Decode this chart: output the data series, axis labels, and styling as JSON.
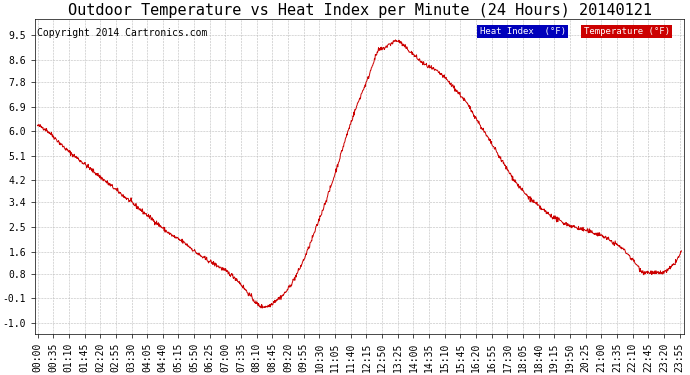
{
  "title": "Outdoor Temperature vs Heat Index per Minute (24 Hours) 20140121",
  "copyright": "Copyright 2014 Cartronics.com",
  "yticks": [
    9.5,
    8.6,
    7.8,
    6.9,
    6.0,
    5.1,
    4.2,
    3.4,
    2.5,
    1.6,
    0.8,
    -0.1,
    -1.0
  ],
  "ylim": [
    -1.4,
    10.1
  ],
  "background_color": "#ffffff",
  "grid_color": "#bbbbbb",
  "line_color": "#cc0000",
  "legend_heat_bg": "#0000bb",
  "legend_temp_bg": "#cc0000",
  "legend_text_color": "#ffffff",
  "title_fontsize": 11,
  "copyright_fontsize": 7,
  "tick_fontsize": 7,
  "xtick_step": 35,
  "cp_minutes": [
    0,
    30,
    60,
    90,
    120,
    150,
    180,
    210,
    240,
    270,
    300,
    330,
    360,
    390,
    420,
    450,
    460,
    470,
    480,
    490,
    500,
    510,
    520,
    530,
    540,
    570,
    600,
    630,
    660,
    690,
    720,
    730,
    740,
    750,
    755,
    760,
    770,
    780,
    790,
    800,
    820,
    840,
    860,
    880,
    900,
    930,
    960,
    990,
    1020,
    1050,
    1080,
    1110,
    1140,
    1170,
    1200,
    1220,
    1240,
    1260,
    1280,
    1300,
    1320,
    1330,
    1340,
    1350,
    1360,
    1380,
    1400,
    1420,
    1439
  ],
  "cp_values": [
    6.2,
    5.9,
    5.4,
    5.0,
    4.6,
    4.2,
    3.8,
    3.4,
    3.0,
    2.6,
    2.2,
    1.9,
    1.5,
    1.2,
    0.9,
    0.5,
    0.3,
    0.1,
    -0.1,
    -0.3,
    -0.4,
    -0.4,
    -0.35,
    -0.2,
    -0.1,
    0.5,
    1.5,
    2.8,
    4.2,
    5.8,
    7.2,
    7.6,
    8.0,
    8.5,
    8.7,
    8.9,
    9.0,
    9.1,
    9.2,
    9.3,
    9.1,
    8.8,
    8.5,
    8.3,
    8.1,
    7.6,
    7.0,
    6.2,
    5.4,
    4.6,
    3.9,
    3.4,
    3.0,
    2.7,
    2.5,
    2.4,
    2.3,
    2.2,
    2.0,
    1.8,
    1.5,
    1.3,
    1.1,
    0.9,
    0.85,
    0.82,
    0.85,
    1.1,
    1.6
  ]
}
